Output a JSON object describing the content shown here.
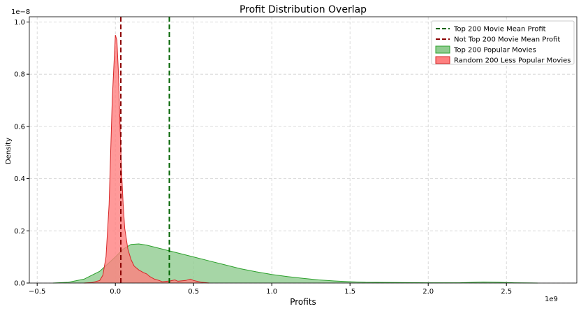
{
  "chart_data": {
    "type": "area",
    "title": "Profit Distribution Overlap",
    "xlabel": "Profits",
    "ylabel": "Density",
    "x_offset_text": "1e9",
    "y_offset_text": "1e−8",
    "xlim": [
      -0.55,
      2.95
    ],
    "ylim": [
      0,
      1.02
    ],
    "x_ticks": [
      -0.5,
      0.0,
      0.5,
      1.0,
      1.5,
      2.0,
      2.5
    ],
    "x_tick_labels": [
      "−0.5",
      "0.0",
      "0.5",
      "1.0",
      "1.5",
      "2.0",
      "2.5"
    ],
    "y_ticks": [
      0.0,
      0.2,
      0.4,
      0.6,
      0.8,
      1.0
    ],
    "y_tick_labels": [
      "0.0",
      "0.2",
      "0.4",
      "0.6",
      "0.8",
      "1.0"
    ],
    "grid": true,
    "legend_position": "top-right",
    "series": [
      {
        "name": "Top 200 Popular Movies",
        "color": "#2ca02c",
        "fill": "#90cc90",
        "x": [
          -0.4,
          -0.3,
          -0.2,
          -0.1,
          0.0,
          0.05,
          0.1,
          0.15,
          0.2,
          0.3,
          0.4,
          0.5,
          0.6,
          0.7,
          0.8,
          0.9,
          1.0,
          1.1,
          1.2,
          1.3,
          1.4,
          1.5,
          1.6,
          1.8,
          2.0,
          2.2,
          2.35,
          2.45,
          2.55,
          2.7
        ],
        "y": [
          0.0,
          0.003,
          0.015,
          0.045,
          0.1,
          0.13,
          0.148,
          0.15,
          0.145,
          0.13,
          0.115,
          0.1,
          0.085,
          0.07,
          0.055,
          0.043,
          0.033,
          0.025,
          0.018,
          0.012,
          0.008,
          0.005,
          0.003,
          0.002,
          0.001,
          0.001,
          0.004,
          0.003,
          0.001,
          0.0
        ]
      },
      {
        "name": "Random 200 Less Popular Movies",
        "color": "#d62728",
        "fill": "#ff8080",
        "x": [
          -0.2,
          -0.15,
          -0.1,
          -0.08,
          -0.06,
          -0.04,
          -0.02,
          0.0,
          0.01,
          0.02,
          0.03,
          0.04,
          0.05,
          0.06,
          0.08,
          0.1,
          0.12,
          0.15,
          0.18,
          0.2,
          0.22,
          0.25,
          0.28,
          0.3,
          0.35,
          0.38,
          0.4,
          0.45,
          0.48,
          0.5,
          0.55,
          0.6
        ],
        "y": [
          0.0,
          0.002,
          0.01,
          0.03,
          0.1,
          0.3,
          0.7,
          0.95,
          0.93,
          0.8,
          0.6,
          0.42,
          0.3,
          0.21,
          0.13,
          0.09,
          0.065,
          0.05,
          0.04,
          0.035,
          0.025,
          0.015,
          0.01,
          0.005,
          0.008,
          0.012,
          0.007,
          0.01,
          0.015,
          0.01,
          0.003,
          0.0
        ]
      }
    ],
    "mean_lines": [
      {
        "name": "Top 200 Movie Mean Profit",
        "x": 0.345,
        "color": "#006400"
      },
      {
        "name": "Not Top 200 Movie Mean Profit",
        "x": 0.035,
        "color": "#8b0000"
      }
    ]
  }
}
